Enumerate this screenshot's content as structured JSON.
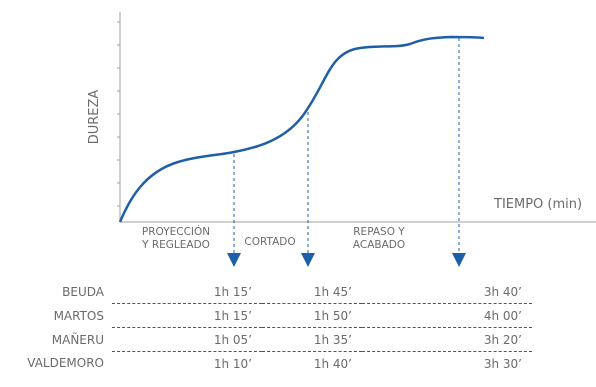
{
  "chart_data": {
    "type": "line",
    "ylabel": "DUREZA",
    "xlabel": "TIEMPO (min)",
    "stages": [
      {
        "lines": [
          "PROYECCIÓN",
          "Y REGLEADO"
        ]
      },
      {
        "lines": [
          "CORTADO"
        ]
      },
      {
        "lines": [
          "REPASO Y",
          "ACABADO"
        ]
      }
    ],
    "columns": [
      "stage1",
      "stage2",
      "stage3"
    ],
    "rows": [
      {
        "name": "BEUDA",
        "times": [
          "1h 15’",
          "1h 45’",
          "3h 40’"
        ]
      },
      {
        "name": "MARTOS",
        "times": [
          "1h 15’",
          "1h 50’",
          "4h 00’"
        ]
      },
      {
        "name": "MAÑERU",
        "times": [
          "1h 05’",
          "1h 35’",
          "3h 20’"
        ]
      },
      {
        "name": "VALDEMORO",
        "times": [
          "1h 10’",
          "1h 40’",
          "3h 30’"
        ]
      }
    ],
    "colors": {
      "curve": "#1f5fa8",
      "axis": "#a0a0a0",
      "text": "#6b6b6b"
    }
  }
}
